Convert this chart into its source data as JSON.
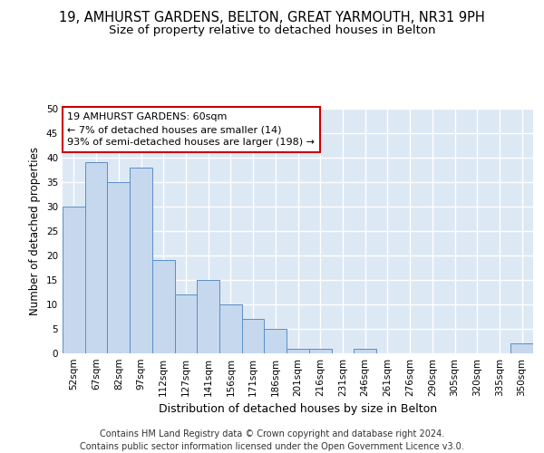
{
  "title1": "19, AMHURST GARDENS, BELTON, GREAT YARMOUTH, NR31 9PH",
  "title2": "Size of property relative to detached houses in Belton",
  "xlabel": "Distribution of detached houses by size in Belton",
  "ylabel": "Number of detached properties",
  "categories": [
    "52sqm",
    "67sqm",
    "82sqm",
    "97sqm",
    "112sqm",
    "127sqm",
    "141sqm",
    "156sqm",
    "171sqm",
    "186sqm",
    "201sqm",
    "216sqm",
    "231sqm",
    "246sqm",
    "261sqm",
    "276sqm",
    "290sqm",
    "305sqm",
    "320sqm",
    "335sqm",
    "350sqm"
  ],
  "values": [
    30,
    39,
    35,
    38,
    19,
    12,
    15,
    10,
    7,
    5,
    1,
    1,
    0,
    1,
    0,
    0,
    0,
    0,
    0,
    0,
    2
  ],
  "bar_color": "#c5d8ee",
  "bar_edge_color": "#5b8ec5",
  "annotation_text": "19 AMHURST GARDENS: 60sqm\n← 7% of detached houses are smaller (14)\n93% of semi-detached houses are larger (198) →",
  "annotation_box_color": "#ffffff",
  "annotation_box_edge_color": "#cc0000",
  "ylim": [
    0,
    50
  ],
  "yticks": [
    0,
    5,
    10,
    15,
    20,
    25,
    30,
    35,
    40,
    45,
    50
  ],
  "bg_color": "#dde8f5",
  "grid_color": "#ffffff",
  "fig_bg_color": "#ffffff",
  "title1_fontsize": 10.5,
  "title2_fontsize": 9.5,
  "xlabel_fontsize": 9,
  "ylabel_fontsize": 8.5,
  "tick_fontsize": 7.5,
  "annotation_fontsize": 8,
  "footnote_fontsize": 7,
  "footnote": "Contains HM Land Registry data © Crown copyright and database right 2024.\nContains public sector information licensed under the Open Government Licence v3.0."
}
